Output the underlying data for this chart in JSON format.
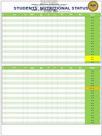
{
  "bg_color": "#ffffff",
  "table_header_color": "#92d050",
  "table_header_text": "#ffffff",
  "row_colors": [
    "#ffffff",
    "#e2efda"
  ],
  "status_normal": "#92d050",
  "status_wasted": "#ffff00",
  "status_overweight": "#ffc000",
  "status_obese": "#ff0000",
  "num_rows_t1": 18,
  "num_rows_t2": 22,
  "colored_cells_t1": [
    {
      "row": 0,
      "color": "#92d050",
      "text": "Normal"
    },
    {
      "row": 1,
      "color": "#92d050",
      "text": "Normal"
    },
    {
      "row": 2,
      "color": "#92d050",
      "text": "Normal"
    },
    {
      "row": 3,
      "color": "#92d050",
      "text": "Normal"
    },
    {
      "row": 4,
      "color": "#92d050",
      "text": "Normal"
    },
    {
      "row": 5,
      "color": "#92d050",
      "text": "Normal"
    },
    {
      "row": 6,
      "color": "#92d050",
      "text": "Normal"
    },
    {
      "row": 7,
      "color": "#92d050",
      "text": "Normal"
    },
    {
      "row": 8,
      "color": "#92d050",
      "text": "Normal"
    },
    {
      "row": 9,
      "color": "#92d050",
      "text": "Normal"
    },
    {
      "row": 10,
      "color": "#92d050",
      "text": "Normal"
    },
    {
      "row": 11,
      "color": "#92d050",
      "text": "Normal"
    },
    {
      "row": 12,
      "color": "#92d050",
      "text": "Normal"
    },
    {
      "row": 13,
      "color": "#92d050",
      "text": "Normal"
    },
    {
      "row": 14,
      "color": "#92d050",
      "text": "Normal"
    },
    {
      "row": 15,
      "color": "#ffff00",
      "text": "Wasted"
    },
    {
      "row": 16,
      "color": "#ffff00",
      "text": "Wasted"
    },
    {
      "row": 17,
      "color": "#92d050",
      "text": "Normal"
    }
  ],
  "colored_cells_t2": [
    {
      "row": 0,
      "color": "#92d050",
      "text": "Normal"
    },
    {
      "row": 1,
      "color": "#92d050",
      "text": "Normal"
    },
    {
      "row": 2,
      "color": "#92d050",
      "text": "Normal"
    },
    {
      "row": 3,
      "color": "#92d050",
      "text": "Normal"
    },
    {
      "row": 4,
      "color": "#92d050",
      "text": "Normal"
    },
    {
      "row": 5,
      "color": "#92d050",
      "text": "Normal"
    },
    {
      "row": 6,
      "color": "#92d050",
      "text": "Normal"
    },
    {
      "row": 7,
      "color": "#ffc000",
      "text": "Overweight"
    },
    {
      "row": 8,
      "color": "#92d050",
      "text": "Normal"
    },
    {
      "row": 9,
      "color": "#92d050",
      "text": "Normal"
    },
    {
      "row": 10,
      "color": "#92d050",
      "text": "Normal"
    },
    {
      "row": 11,
      "color": "#92d050",
      "text": "Normal"
    },
    {
      "row": 12,
      "color": "#92d050",
      "text": "Normal"
    },
    {
      "row": 13,
      "color": "#92d050",
      "text": "Normal"
    },
    {
      "row": 14,
      "color": "#92d050",
      "text": "Normal"
    },
    {
      "row": 15,
      "color": "#92d050",
      "text": "Normal"
    },
    {
      "row": 16,
      "color": "#92d050",
      "text": "Normal"
    },
    {
      "row": 17,
      "color": "#92d050",
      "text": "Normal"
    },
    {
      "row": 18,
      "color": "#92d050",
      "text": "Normal"
    },
    {
      "row": 19,
      "color": "#92d050",
      "text": "Normal"
    },
    {
      "row": 20,
      "color": "#92d050",
      "text": "Normal"
    },
    {
      "row": 21,
      "color": "#92d050",
      "text": "Normal"
    }
  ],
  "headers": [
    "No.",
    "NAME",
    "Age",
    "Date of\nEnum.",
    "Birth\nDate",
    "Sex",
    "Score",
    "HAZ\nClass",
    "WAZ\nClass",
    "BMI\nStatus",
    "Nutritional\nStatus"
  ],
  "col_props": [
    0.025,
    0.13,
    0.03,
    0.07,
    0.065,
    0.04,
    0.04,
    0.065,
    0.065,
    0.065,
    0.11
  ]
}
